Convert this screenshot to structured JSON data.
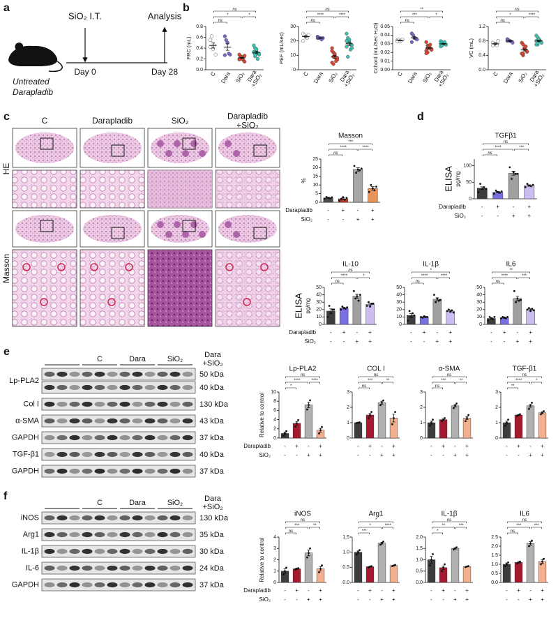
{
  "panel_labels": [
    "a",
    "b",
    "c",
    "d",
    "e",
    "f"
  ],
  "schematic": {
    "injection": "SiO₂ I.T.",
    "analysis": "Analysis",
    "day0": "Day 0",
    "day28": "Day 28",
    "groups": [
      "Untreated",
      "Darapladib"
    ]
  },
  "histology": {
    "columns": [
      "C",
      "Darapladib",
      "SiO₂",
      "Darapladib\n+SiO₂"
    ],
    "rows": [
      "HE",
      "Masson"
    ]
  },
  "treatment": [
    {
      "name": "Darapladib",
      "signs": [
        "-",
        "+",
        "-",
        "+"
      ]
    },
    {
      "name": "SiO₂",
      "signs": [
        "-",
        "-",
        "+",
        "+"
      ]
    }
  ],
  "blots_e": {
    "groups": [
      "C",
      "Dara",
      "SiO₂",
      "Dara\n+SiO₂"
    ],
    "bands": [
      {
        "name": "Lp-PLA2",
        "sizes": [
          "50 kDa",
          "40 kDa"
        ]
      },
      {
        "name": "Col I",
        "sizes": [
          "130 kDa"
        ]
      },
      {
        "name": "α-SMA",
        "sizes": [
          "43 kDa"
        ]
      },
      {
        "name": "GAPDH",
        "sizes": [
          "37 kDa"
        ]
      },
      {
        "name": "TGF-β1",
        "sizes": [
          "40 kDa"
        ]
      },
      {
        "name": "GAPDH",
        "sizes": [
          "37 kDa"
        ]
      }
    ]
  },
  "blots_f": {
    "groups": [
      "C",
      "Dara",
      "SiO₂",
      "Dara\n+SiO₂"
    ],
    "bands": [
      {
        "name": "iNOS",
        "sizes": [
          "130 kDa"
        ]
      },
      {
        "name": "Arg1",
        "sizes": [
          "35 kDa"
        ]
      },
      {
        "name": "IL-1β",
        "sizes": [
          "30 kDa"
        ]
      },
      {
        "name": "IL-6",
        "sizes": [
          "24 kDa"
        ]
      },
      {
        "name": "GAPDH",
        "sizes": [
          "37 kDa"
        ]
      }
    ]
  },
  "chart_data": [
    {
      "type": "strip",
      "ylabel": "FRC (mL)",
      "categories": [
        "C",
        "Dara",
        "SiO₂",
        "Dara\n+SiO₂"
      ],
      "colors": [
        "#ffffff",
        "#7d65c9",
        "#d9452e",
        "#3cc6b5"
      ],
      "values": [
        0.45,
        0.42,
        0.22,
        0.32
      ],
      "errors": [
        0.05,
        0.06,
        0.01,
        0.02
      ],
      "points": [
        [
          0.55,
          0.62,
          0.38,
          0.45,
          0.28,
          0.42
        ],
        [
          0.62,
          0.55,
          0.5,
          0.3,
          0.28,
          0.27
        ],
        [
          0.2,
          0.25,
          0.22,
          0.18,
          0.15,
          0.28,
          0.23,
          0.2,
          0.24,
          0.26,
          0.19,
          0.24
        ],
        [
          0.45,
          0.4,
          0.35,
          0.3,
          0.28,
          0.32,
          0.25,
          0.38,
          0.2,
          0.3,
          0.33,
          0.28
        ]
      ],
      "ylim": [
        0,
        0.8
      ],
      "yticks": [
        {
          "value": 0,
          "label": "0.0"
        },
        0.2,
        0.4,
        0.6,
        0.8
      ],
      "significance": [
        "ns",
        "*",
        "*",
        "ns"
      ]
    },
    {
      "type": "strip",
      "ylabel": "PEF (mL/sec)",
      "categories": [
        "C",
        "Dara",
        "SiO₂",
        "Dara\n+SiO₂"
      ],
      "colors": [
        "#ffffff",
        "#7d65c9",
        "#d9452e",
        "#3cc6b5"
      ],
      "values": [
        23,
        22,
        9,
        18
      ],
      "errors": [
        0.7,
        0.3,
        1,
        1.2
      ],
      "points": [
        [
          25,
          24,
          23,
          22,
          24,
          20
        ],
        [
          23,
          22,
          22,
          21,
          22,
          22
        ],
        [
          15,
          12,
          10,
          8,
          7,
          5,
          9,
          11,
          6,
          8,
          13,
          4
        ],
        [
          25,
          22,
          20,
          18,
          17,
          16,
          19,
          21,
          14,
          15,
          20,
          9
        ]
      ],
      "ylim": [
        0,
        30
      ],
      "yticks": [
        0,
        10,
        20,
        30
      ],
      "significance": [
        "ns",
        "****",
        "****",
        "ns"
      ]
    },
    {
      "type": "strip",
      "ylabel": "Cchord (mL/Sec H₂O)",
      "categories": [
        "C",
        "Dara",
        "SiO₂",
        "Dara\n+SiO₂"
      ],
      "colors": [
        "#ffffff",
        "#7d65c9",
        "#d9452e",
        "#3cc6b5"
      ],
      "values": [
        0.034,
        0.037,
        0.025,
        0.03
      ],
      "errors": [
        0.0004,
        0.0015,
        0.001,
        0.0005
      ],
      "points": [
        [
          0.034,
          0.035,
          0.033,
          0.034,
          0.035,
          0.033
        ],
        [
          0.042,
          0.04,
          0.037,
          0.036,
          0.035,
          0.032
        ],
        [
          0.032,
          0.028,
          0.027,
          0.025,
          0.024,
          0.022,
          0.02,
          0.026,
          0.029,
          0.023,
          0.019,
          0.025
        ],
        [
          0.033,
          0.032,
          0.031,
          0.03,
          0.029,
          0.03,
          0.028,
          0.031,
          0.032,
          0.029,
          0.027,
          0.028
        ]
      ],
      "ylim": [
        0,
        0.05
      ],
      "yticks": [
        {
          "value": 0,
          "label": "0.00"
        },
        0.01,
        0.02,
        0.03,
        0.04,
        0.05
      ],
      "significance": [
        "ns",
        "***",
        "*",
        "**"
      ]
    },
    {
      "type": "strip",
      "ylabel": "VC (mL)",
      "categories": [
        "C",
        "Dara",
        "SiO₂",
        "Dara\n+SiO₂"
      ],
      "colors": [
        "#ffffff",
        "#7d65c9",
        "#d9452e",
        "#3cc6b5"
      ],
      "values": [
        0.72,
        0.8,
        0.55,
        0.8
      ],
      "errors": [
        0.02,
        0.015,
        0.03,
        0.02
      ],
      "points": [
        [
          0.75,
          0.7,
          0.72,
          0.68,
          0.8,
          0.67
        ],
        [
          0.85,
          0.82,
          0.8,
          0.78,
          0.75,
          0.8
        ],
        [
          0.75,
          0.7,
          0.6,
          0.55,
          0.5,
          0.45,
          0.4,
          0.6,
          0.65,
          0.5,
          0.45,
          0.45
        ],
        [
          0.95,
          0.9,
          0.85,
          0.8,
          0.75,
          0.8,
          0.7,
          0.85,
          0.8,
          0.75,
          0.7,
          0.75
        ]
      ],
      "ylim": [
        0,
        1.2
      ],
      "yticks": [
        {
          "value": 0,
          "label": "0.0"
        },
        0.4,
        0.8,
        1.2
      ],
      "significance": [
        "ns",
        "*",
        "****",
        "ns"
      ]
    },
    {
      "type": "bar",
      "title": "Masson",
      "ylabel": "%",
      "colors": [
        "#4d4d4d",
        "#c0392b",
        "#a6a6a6",
        "#e8935a"
      ],
      "values": [
        2.5,
        2,
        19,
        8
      ],
      "errors": [
        0.4,
        0.5,
        1,
        1
      ],
      "points": [
        [
          2,
          3,
          2.5,
          2.2,
          2.8
        ],
        [
          1,
          2,
          3,
          1.5,
          2.5
        ],
        [
          21,
          17,
          19,
          18.5,
          19.5
        ],
        [
          6,
          10,
          8,
          7,
          9
        ]
      ],
      "ylim": [
        0,
        25
      ],
      "yticks": [
        0,
        5,
        10,
        15,
        20,
        25
      ],
      "significance": [
        "ns",
        "****",
        "****",
        "***"
      ]
    },
    {
      "type": "bar",
      "title": "TGFβ1",
      "ylabel": "ELISA",
      "yunit": "pg/mg",
      "colors": [
        "#3d3d3d",
        "#7a6fe0",
        "#a0a0a0",
        "#cbbcf2"
      ],
      "values": [
        32,
        20,
        77,
        40
      ],
      "errors": [
        4,
        2,
        6,
        2
      ],
      "points": [
        [
          20,
          45,
          30,
          35,
          30
        ],
        [
          15,
          25,
          20,
          18,
          22
        ],
        [
          95,
          60,
          80,
          75,
          75
        ],
        [
          35,
          45,
          40,
          38,
          42
        ]
      ],
      "ylim": [
        0,
        120
      ],
      "yticks": [
        0,
        50,
        100
      ],
      "significance": [
        "ns",
        "****",
        "***",
        "ns"
      ]
    },
    {
      "type": "bar",
      "title": "IL-10",
      "ylabel": "ELISA",
      "yunit": "pg/mg",
      "colors": [
        "#3d3d3d",
        "#7a6fe0",
        "#a0a0a0",
        "#cbbcf2"
      ],
      "values": [
        18,
        22,
        38,
        27
      ],
      "errors": [
        3,
        1,
        2.5,
        1.5
      ],
      "points": [
        [
          10,
          25,
          15,
          20,
          20
        ],
        [
          20,
          24,
          22,
          21,
          23
        ],
        [
          45,
          35,
          38,
          32,
          40
        ],
        [
          25,
          30,
          24,
          28,
          28
        ]
      ],
      "ylim": [
        0,
        50
      ],
      "yticks": [
        0,
        10,
        20,
        30,
        40,
        50
      ],
      "significance": [
        "ns",
        "****",
        "*",
        "ns"
      ]
    },
    {
      "type": "bar",
      "title": "IL-1β",
      "colors": [
        "#3d3d3d",
        "#7a6fe0",
        "#a0a0a0",
        "#cbbcf2"
      ],
      "values": [
        12,
        10,
        34,
        18
      ],
      "errors": [
        2.5,
        0.5,
        2,
        1
      ],
      "points": [
        [
          5,
          18,
          10,
          15,
          12
        ],
        [
          10,
          9,
          11,
          10,
          10
        ],
        [
          40,
          30,
          35,
          32,
          33
        ],
        [
          18,
          20,
          17,
          19,
          16
        ]
      ],
      "ylim": [
        0,
        50
      ],
      "yticks": [
        0,
        10,
        20,
        30,
        40,
        50
      ],
      "significance": [
        "ns",
        "****",
        "****",
        "*"
      ]
    },
    {
      "type": "bar",
      "title": "IL6",
      "colors": [
        "#3d3d3d",
        "#7a6fe0",
        "#a0a0a0",
        "#cbbcf2"
      ],
      "values": [
        8,
        9,
        35,
        20
      ],
      "errors": [
        1,
        1,
        3,
        1
      ],
      "points": [
        [
          5,
          10,
          8,
          7,
          10
        ],
        [
          8,
          10,
          9,
          8,
          10
        ],
        [
          45,
          30,
          35,
          32,
          33
        ],
        [
          20,
          22,
          18,
          21,
          19
        ]
      ],
      "ylim": [
        0,
        50
      ],
      "yticks": [
        0,
        10,
        20,
        30,
        40,
        50
      ],
      "significance": [
        "ns",
        "****",
        "***",
        "**"
      ]
    },
    {
      "type": "bar",
      "title": "Lp-PLA2",
      "ylabel": "Relative to control",
      "colors": [
        "#3d3d3d",
        "#a3192e",
        "#b0b0b0",
        "#f2b08e"
      ],
      "values": [
        1,
        3.2,
        7.2,
        1.7
      ],
      "errors": [
        0.3,
        0.4,
        0.6,
        0.4
      ],
      "points": [
        [
          0.5,
          1,
          1.5
        ],
        [
          2.5,
          3.2,
          3.9
        ],
        [
          6.2,
          7.2,
          8.2
        ],
        [
          1,
          1.7,
          2.4
        ]
      ],
      "ylim": [
        0,
        10
      ],
      "yticks": [
        0,
        2,
        4,
        6,
        8,
        10
      ],
      "significance": [
        "*",
        "****",
        "****",
        "ns"
      ]
    },
    {
      "type": "bar",
      "title": "COL I",
      "colors": [
        "#3d3d3d",
        "#a3192e",
        "#b0b0b0",
        "#f2b08e"
      ],
      "values": [
        1,
        1.5,
        2.3,
        1.3
      ],
      "errors": [
        0.01,
        0.1,
        0.1,
        0.25
      ],
      "points": [
        [
          0.98,
          1,
          1.02
        ],
        [
          1.3,
          1.5,
          1.7
        ],
        [
          2.15,
          2.3,
          2.45
        ],
        [
          0.9,
          1.3,
          1.7
        ]
      ],
      "ylim": [
        0,
        3
      ],
      "yticks": [
        0,
        1,
        2,
        3
      ],
      "significance": [
        "ns",
        "***",
        "**",
        "ns"
      ]
    },
    {
      "type": "bar",
      "title": "α-SMA",
      "colors": [
        "#3d3d3d",
        "#a3192e",
        "#b0b0b0",
        "#f2b08e"
      ],
      "values": [
        1,
        1.2,
        2.1,
        1.3
      ],
      "errors": [
        0.1,
        0.05,
        0.08,
        0.1
      ],
      "points": [
        [
          0.8,
          1,
          1.2
        ],
        [
          1.1,
          1.2,
          1.3
        ],
        [
          1.95,
          2.1,
          2.25
        ],
        [
          1.1,
          1.3,
          1.5
        ]
      ],
      "ylim": [
        0,
        3
      ],
      "yticks": [
        0,
        1,
        2,
        3
      ],
      "significance": [
        "ns",
        "***",
        "**",
        "ns"
      ]
    },
    {
      "type": "bar",
      "title": "TGF-β1",
      "colors": [
        "#3d3d3d",
        "#a3192e",
        "#b0b0b0",
        "#f2b08e"
      ],
      "values": [
        1,
        1.5,
        2.1,
        1.65
      ],
      "errors": [
        0.1,
        0.03,
        0.1,
        0.06
      ],
      "points": [
        [
          0.8,
          1,
          1.2
        ],
        [
          1.45,
          1.5,
          1.55
        ],
        [
          1.9,
          2.1,
          2.3
        ],
        [
          1.55,
          1.65,
          1.75
        ]
      ],
      "ylim": [
        0,
        3
      ],
      "yticks": [
        0,
        1,
        2,
        3
      ],
      "significance": [
        "**",
        "****",
        "*",
        "ns"
      ]
    },
    {
      "type": "bar",
      "title": "iNOS",
      "ylabel": "Relative to control",
      "colors": [
        "#3d3d3d",
        "#a3192e",
        "#b0b0b0",
        "#f2b08e"
      ],
      "values": [
        1,
        1.2,
        2.6,
        1.2
      ],
      "errors": [
        0.2,
        0.05,
        0.25,
        0.2
      ],
      "points": [
        [
          0.7,
          1,
          1.3
        ],
        [
          1.15,
          1.2,
          1.25
        ],
        [
          2.2,
          2.6,
          3
        ],
        [
          0.9,
          1.2,
          1.5
        ]
      ],
      "ylim": [
        0,
        4
      ],
      "yticks": [
        0,
        1,
        2,
        3,
        4
      ],
      "significance": [
        "ns",
        "***",
        "**",
        "ns"
      ]
    },
    {
      "type": "bar",
      "title": "Arg1",
      "colors": [
        "#3d3d3d",
        "#a3192e",
        "#b0b0b0",
        "#f2b08e"
      ],
      "values": [
        1,
        0.52,
        1.3,
        0.56
      ],
      "errors": [
        0.04,
        0.01,
        0.03,
        0.01
      ],
      "points": [
        [
          0.93,
          1,
          1.07
        ],
        [
          0.5,
          0.52,
          0.54
        ],
        [
          1.25,
          1.3,
          1.35
        ],
        [
          0.54,
          0.56,
          0.58
        ]
      ],
      "ylim": [
        0,
        1.5
      ],
      "yticks": [
        {
          "value": 0,
          "label": "0.0"
        },
        0.5,
        {
          "value": 1,
          "label": "1.0"
        },
        1.5
      ],
      "significance": [
        "***",
        "*",
        "****",
        "*"
      ]
    },
    {
      "type": "bar",
      "title": "IL-1β",
      "colors": [
        "#3d3d3d",
        "#a3192e",
        "#b0b0b0",
        "#f2b08e"
      ],
      "values": [
        1,
        0.65,
        1.5,
        0.7
      ],
      "errors": [
        0.15,
        0.08,
        0.03,
        0.01
      ],
      "points": [
        [
          0.75,
          1,
          1.25
        ],
        [
          0.5,
          0.65,
          0.8
        ],
        [
          1.45,
          1.5,
          1.55
        ],
        [
          0.68,
          0.7,
          0.72
        ]
      ],
      "ylim": [
        0,
        2
      ],
      "yticks": [
        {
          "value": 0,
          "label": "0.0"
        },
        0.5,
        {
          "value": 1,
          "label": "1.0"
        },
        1.5,
        {
          "value": 2,
          "label": "2.0"
        }
      ],
      "significance": [
        "*",
        "**",
        "***",
        "ns"
      ]
    },
    {
      "type": "bar",
      "title": "IL6",
      "colors": [
        "#3d3d3d",
        "#a3192e",
        "#b0b0b0",
        "#f2b08e"
      ],
      "values": [
        1,
        1.1,
        2.15,
        1.15
      ],
      "errors": [
        0.07,
        0.03,
        0.1,
        0.1
      ],
      "points": [
        [
          0.9,
          1,
          1.1
        ],
        [
          1.05,
          1.1,
          1.15
        ],
        [
          2,
          2.15,
          2.3
        ],
        [
          1,
          1.15,
          1.3
        ]
      ],
      "ylim": [
        0,
        2.5
      ],
      "yticks": [
        {
          "value": 0,
          "label": "0.0"
        },
        0.5,
        {
          "value": 1,
          "label": "1.0"
        },
        1.5,
        {
          "value": 2,
          "label": "2.0"
        },
        2.5
      ],
      "significance": [
        "ns",
        "***",
        "***",
        "ns"
      ]
    }
  ]
}
